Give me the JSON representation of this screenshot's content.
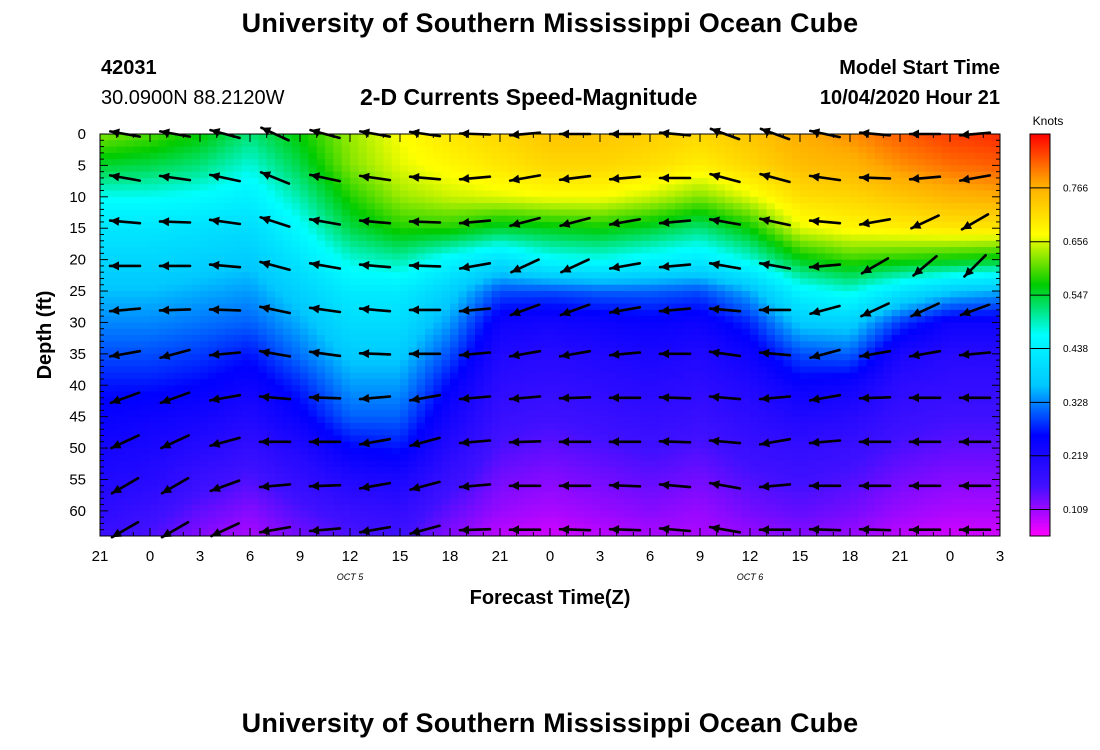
{
  "header": {
    "title": "University of Southern Mississippi Ocean Cube",
    "station_id": "42031",
    "coords": "30.0900N 88.2120W",
    "subtitle": "2-D Currents Speed-Magnitude",
    "model_start_label": "Model Start Time",
    "model_start_value": "10/04/2020 Hour 21"
  },
  "footer": {
    "title": "University of Southern Mississippi Ocean Cube"
  },
  "chart_data": {
    "type": "heatmap",
    "title": "2-D Currents Speed-Magnitude",
    "xlabel": "Forecast Time(Z)",
    "ylabel": "Depth (ft)",
    "x_tick_labels": [
      "21",
      "0",
      "3",
      "6",
      "9",
      "12",
      "15",
      "18",
      "21",
      "0",
      "3",
      "6",
      "9",
      "12",
      "15",
      "18",
      "21",
      "0",
      "3"
    ],
    "date_labels": [
      {
        "text": "OCT 5",
        "at_hour": 15
      },
      {
        "text": "OCT 6",
        "at_hour": 39
      }
    ],
    "x_range_hours": [
      0,
      54
    ],
    "y_tick_labels": [
      0,
      5,
      10,
      15,
      20,
      25,
      30,
      35,
      40,
      45,
      50,
      55,
      60
    ],
    "y_range_ft": [
      0,
      64
    ],
    "colorbar": {
      "label": "Knots",
      "tick_values": [
        "0.109",
        "0.219",
        "0.328",
        "0.438",
        "0.547",
        "0.656",
        "0.766"
      ],
      "range": [
        0.055,
        0.876
      ],
      "colors": [
        "#ff00ff",
        "#4010ff",
        "#0000ff",
        "#00c8ff",
        "#00ffff",
        "#00cc00",
        "#ffff00",
        "#ffaa00",
        "#ff0000"
      ]
    },
    "arrow_times_hours": [
      1.5,
      4.5,
      7.5,
      10.5,
      13.5,
      16.5,
      19.5,
      22.5,
      25.5,
      28.5,
      31.5,
      34.5,
      37.5,
      40.5,
      43.5,
      46.5,
      49.5,
      52.5
    ],
    "arrow_depths_ft": [
      0,
      7,
      14,
      21,
      28,
      35,
      42,
      49,
      56,
      63
    ],
    "speed_grid_knots": {
      "times_hours": [
        0,
        3,
        6,
        9,
        12,
        15,
        18,
        21,
        24,
        27,
        30,
        33,
        36,
        39,
        42,
        45,
        48,
        51,
        54
      ],
      "depths_ft": [
        0,
        5,
        10,
        15,
        20,
        25,
        30,
        35,
        40,
        45,
        50,
        55,
        60,
        64
      ],
      "values": [
        [
          0.62,
          0.6,
          0.57,
          0.52,
          0.57,
          0.63,
          0.67,
          0.7,
          0.72,
          0.74,
          0.74,
          0.73,
          0.72,
          0.74,
          0.77,
          0.79,
          0.82,
          0.84,
          0.85
        ],
        [
          0.55,
          0.54,
          0.52,
          0.48,
          0.54,
          0.62,
          0.66,
          0.68,
          0.7,
          0.72,
          0.72,
          0.71,
          0.69,
          0.72,
          0.75,
          0.76,
          0.79,
          0.81,
          0.82
        ],
        [
          0.47,
          0.47,
          0.46,
          0.44,
          0.5,
          0.58,
          0.63,
          0.65,
          0.66,
          0.67,
          0.67,
          0.65,
          0.62,
          0.66,
          0.71,
          0.72,
          0.74,
          0.76,
          0.77
        ],
        [
          0.42,
          0.42,
          0.41,
          0.4,
          0.46,
          0.54,
          0.58,
          0.58,
          0.55,
          0.56,
          0.57,
          0.55,
          0.52,
          0.57,
          0.66,
          0.68,
          0.69,
          0.7,
          0.7
        ],
        [
          0.39,
          0.39,
          0.38,
          0.37,
          0.42,
          0.48,
          0.5,
          0.45,
          0.41,
          0.46,
          0.47,
          0.45,
          0.43,
          0.48,
          0.56,
          0.59,
          0.58,
          0.57,
          0.56
        ],
        [
          0.36,
          0.36,
          0.35,
          0.34,
          0.38,
          0.43,
          0.43,
          0.38,
          0.3,
          0.3,
          0.31,
          0.31,
          0.3,
          0.35,
          0.45,
          0.48,
          0.42,
          0.37,
          0.35
        ],
        [
          0.33,
          0.33,
          0.32,
          0.31,
          0.35,
          0.4,
          0.4,
          0.34,
          0.24,
          0.23,
          0.24,
          0.25,
          0.24,
          0.28,
          0.37,
          0.38,
          0.29,
          0.24,
          0.24
        ],
        [
          0.3,
          0.3,
          0.29,
          0.27,
          0.32,
          0.37,
          0.37,
          0.3,
          0.21,
          0.2,
          0.21,
          0.22,
          0.21,
          0.24,
          0.3,
          0.31,
          0.22,
          0.2,
          0.2
        ],
        [
          0.27,
          0.27,
          0.26,
          0.24,
          0.28,
          0.34,
          0.34,
          0.26,
          0.19,
          0.18,
          0.19,
          0.2,
          0.19,
          0.21,
          0.25,
          0.24,
          0.19,
          0.18,
          0.18
        ],
        [
          0.25,
          0.24,
          0.23,
          0.21,
          0.25,
          0.31,
          0.31,
          0.23,
          0.17,
          0.16,
          0.17,
          0.18,
          0.17,
          0.19,
          0.21,
          0.2,
          0.17,
          0.16,
          0.16
        ],
        [
          0.23,
          0.22,
          0.2,
          0.18,
          0.21,
          0.26,
          0.27,
          0.2,
          0.15,
          0.14,
          0.15,
          0.16,
          0.15,
          0.17,
          0.18,
          0.17,
          0.15,
          0.14,
          0.14
        ],
        [
          0.21,
          0.2,
          0.17,
          0.15,
          0.18,
          0.21,
          0.22,
          0.17,
          0.13,
          0.12,
          0.13,
          0.14,
          0.13,
          0.15,
          0.16,
          0.15,
          0.13,
          0.12,
          0.12
        ],
        [
          0.19,
          0.17,
          0.14,
          0.12,
          0.15,
          0.17,
          0.18,
          0.14,
          0.11,
          0.1,
          0.11,
          0.12,
          0.11,
          0.13,
          0.14,
          0.13,
          0.11,
          0.1,
          0.1
        ],
        [
          0.17,
          0.15,
          0.12,
          0.1,
          0.13,
          0.15,
          0.16,
          0.12,
          0.09,
          0.08,
          0.09,
          0.1,
          0.1,
          0.11,
          0.12,
          0.11,
          0.09,
          0.08,
          0.08
        ]
      ]
    },
    "arrow_angles_deg": [
      [
        170,
        170,
        165,
        155,
        165,
        170,
        172,
        178,
        185,
        180,
        180,
        175,
        160,
        160,
        168,
        175,
        180,
        185
      ],
      [
        170,
        172,
        168,
        158,
        168,
        172,
        175,
        185,
        190,
        187,
        185,
        180,
        165,
        165,
        172,
        178,
        185,
        190
      ],
      [
        175,
        178,
        172,
        162,
        170,
        175,
        178,
        185,
        195,
        195,
        190,
        185,
        170,
        168,
        175,
        190,
        205,
        210
      ],
      [
        180,
        180,
        175,
        165,
        170,
        175,
        178,
        190,
        205,
        205,
        190,
        185,
        170,
        170,
        185,
        210,
        220,
        225
      ],
      [
        185,
        182,
        178,
        168,
        172,
        175,
        180,
        185,
        200,
        200,
        190,
        185,
        175,
        180,
        195,
        205,
        205,
        200
      ],
      [
        190,
        195,
        185,
        170,
        172,
        178,
        180,
        185,
        190,
        190,
        185,
        180,
        172,
        175,
        195,
        190,
        190,
        185
      ],
      [
        200,
        200,
        190,
        175,
        178,
        185,
        190,
        185,
        185,
        182,
        180,
        178,
        175,
        185,
        190,
        182,
        180,
        180
      ],
      [
        205,
        205,
        195,
        180,
        180,
        190,
        195,
        185,
        182,
        180,
        180,
        178,
        175,
        190,
        185,
        180,
        180,
        180
      ],
      [
        210,
        210,
        200,
        185,
        182,
        190,
        195,
        185,
        180,
        180,
        178,
        175,
        170,
        185,
        180,
        180,
        180,
        180
      ],
      [
        210,
        210,
        205,
        190,
        185,
        190,
        195,
        182,
        180,
        178,
        178,
        175,
        170,
        180,
        178,
        178,
        180,
        180
      ]
    ]
  }
}
